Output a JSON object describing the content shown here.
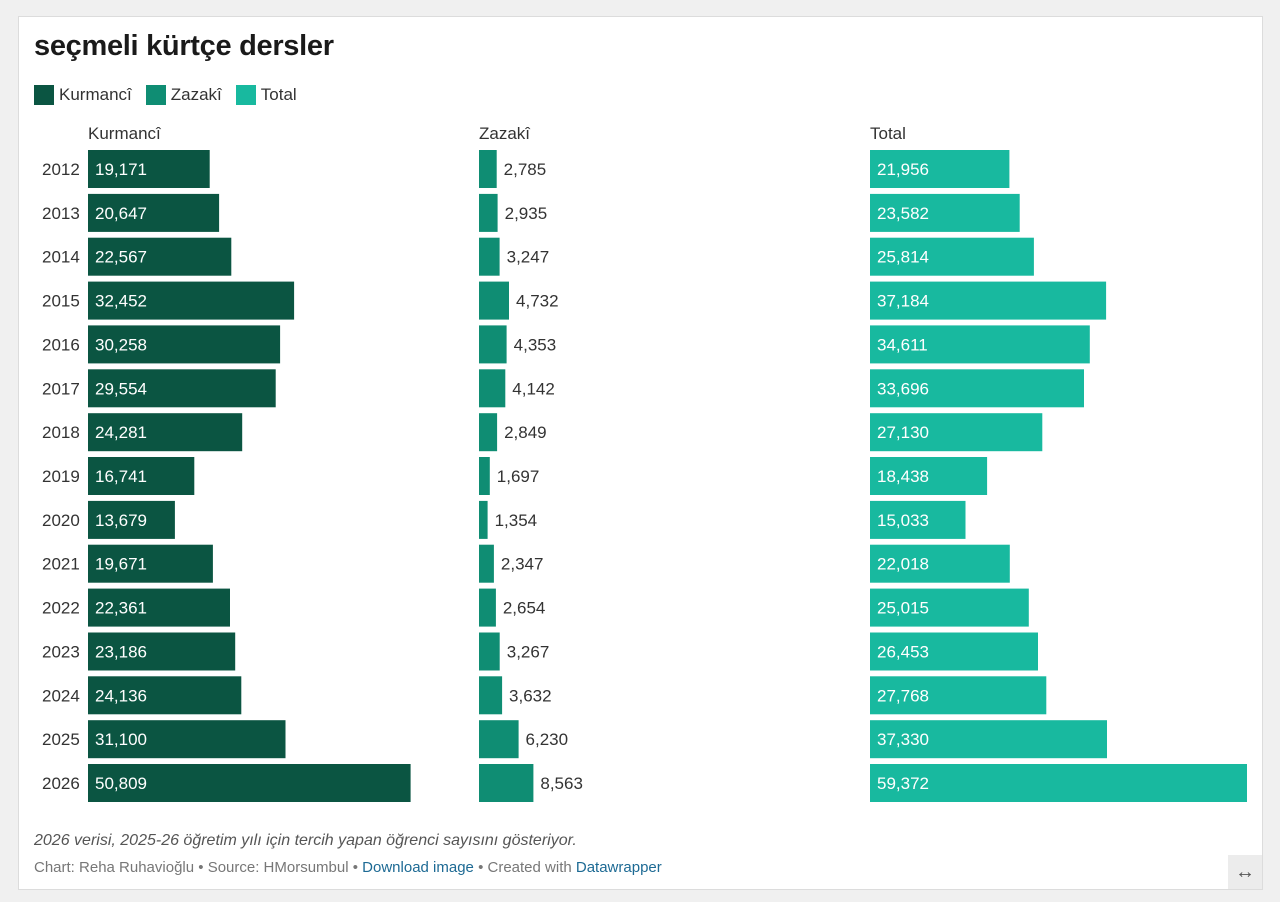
{
  "title": "seçmeli kürtçe dersler",
  "legend": [
    {
      "label": "Kurmancî",
      "color": "#0b5542"
    },
    {
      "label": "Zazakî",
      "color": "#0f8d73"
    },
    {
      "label": "Total",
      "color": "#18b99f"
    }
  ],
  "note": "2026 verisi, 2025-26 öğretim yılı için tercih yapan öğrenci sayısını gösteriyor.",
  "byline": {
    "chart_by": "Chart: Reha Ruhavioğlu",
    "sep1": " • ",
    "source": "Source: HMorsumbul",
    "sep2": " • ",
    "download": "Download image",
    "sep3": " • ",
    "created": "Created with ",
    "datawrapper": "Datawrapper"
  },
  "resize_icon": "↔",
  "chart_data": {
    "type": "bar",
    "orientation": "horizontal",
    "layout": "small-multiples",
    "title": "seçmeli kürtçe dersler",
    "categories": [
      "2012",
      "2013",
      "2014",
      "2015",
      "2016",
      "2017",
      "2018",
      "2019",
      "2020",
      "2021",
      "2022",
      "2023",
      "2024",
      "2025",
      "2026"
    ],
    "series": [
      {
        "name": "Kurmancî",
        "color": "#0b5542",
        "label_position": "inside",
        "values": [
          19171,
          20647,
          22567,
          32452,
          30258,
          29554,
          24281,
          16741,
          13679,
          19671,
          22361,
          23186,
          24136,
          31100,
          50809
        ]
      },
      {
        "name": "Zazakî",
        "color": "#0f8d73",
        "label_position": "outside",
        "values": [
          2785,
          2935,
          3247,
          4732,
          4353,
          4142,
          2849,
          1697,
          1354,
          2347,
          2654,
          3267,
          3632,
          6230,
          8563
        ]
      },
      {
        "name": "Total",
        "color": "#18b99f",
        "label_position": "inside",
        "values": [
          21956,
          23582,
          25814,
          37184,
          34611,
          33696,
          27130,
          18438,
          15033,
          22018,
          25015,
          26453,
          27768,
          37330,
          59372
        ]
      }
    ],
    "xlim": [
      0,
      59372
    ],
    "grid": false,
    "legend": "top-left"
  }
}
